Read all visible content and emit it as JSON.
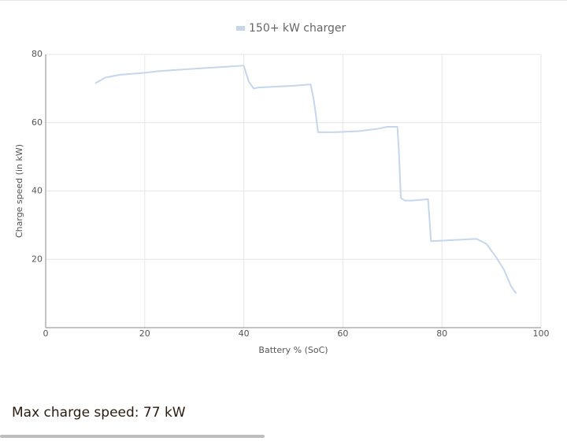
{
  "chart_data": {
    "type": "line",
    "legend_position": "top",
    "xlabel": "Battery % (SoC)",
    "ylabel": "Charge speed (in kW)",
    "x": [
      10,
      12,
      15,
      20,
      23,
      30,
      40,
      41,
      42,
      43,
      50,
      53.5,
      54.2,
      55,
      58,
      63,
      67,
      69,
      71,
      71.3,
      71.7,
      72.5,
      74,
      77.2,
      77.8,
      87,
      89,
      91,
      92.5,
      94,
      95
    ],
    "series": [
      {
        "name": "150+ kW charger",
        "color": "#c6d6eb",
        "values": [
          71.5,
          73.2,
          74,
          74.6,
          75.1,
          75.8,
          76.7,
          72,
          70,
          70.3,
          70.8,
          71.2,
          66,
          57.2,
          57.2,
          57.5,
          58.2,
          58.8,
          58.8,
          52,
          38,
          37.2,
          37.2,
          37.6,
          25.3,
          26,
          24.5,
          20.5,
          17,
          12,
          10
        ]
      }
    ],
    "xlim": [
      0,
      100
    ],
    "xticks": [
      0,
      20,
      40,
      60,
      80,
      100
    ],
    "ylim": [
      0,
      80
    ],
    "yticks": [
      20,
      40,
      60,
      80
    ],
    "grid": true
  },
  "summary": "Max charge speed: 77 kW"
}
